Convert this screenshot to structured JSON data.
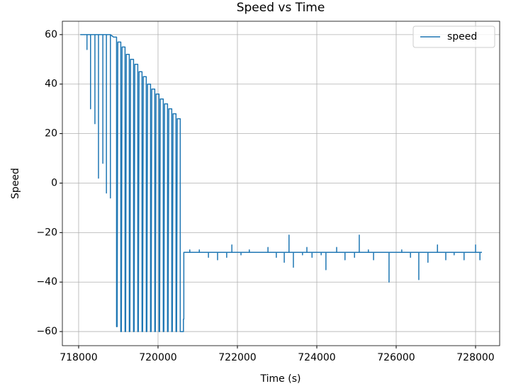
{
  "chart_data": {
    "type": "line",
    "title": "Speed vs Time",
    "xlabel": "Time (s)",
    "ylabel": "Speed",
    "x": [
      718040,
      718210,
      718210,
      718210,
      718300,
      718300,
      718300,
      718410,
      718410,
      718410,
      718500,
      718500,
      718500,
      718610,
      718610,
      718610,
      718700,
      718700,
      718700,
      718800,
      718800,
      718800,
      718880,
      718955,
      718955,
      718970,
      718987,
      719062,
      719062,
      719077,
      719094,
      719169,
      719169,
      719184,
      719201,
      719276,
      719276,
      719291,
      719308,
      719383,
      719383,
      719398,
      719415,
      719490,
      719490,
      719505,
      719522,
      719597,
      719597,
      719612,
      719629,
      719704,
      719704,
      719719,
      719736,
      719811,
      719811,
      719826,
      719843,
      719918,
      719918,
      719933,
      719950,
      720025,
      720025,
      720040,
      720057,
      720132,
      720132,
      720147,
      720164,
      720239,
      720239,
      720254,
      720271,
      720346,
      720346,
      720361,
      720378,
      720453,
      720453,
      720468,
      720485,
      720560,
      720560,
      720640,
      720640,
      720650,
      720650,
      720800,
      720800,
      720800,
      721040,
      721040,
      721040,
      721270,
      721270,
      721270,
      721500,
      721500,
      721500,
      721730,
      721730,
      721730,
      721860,
      721860,
      721860,
      722090,
      722090,
      722090,
      722300,
      722300,
      722300,
      722770,
      722770,
      722770,
      722980,
      722980,
      722980,
      723180,
      723180,
      723180,
      723300,
      723300,
      723300,
      723410,
      723410,
      723410,
      723640,
      723640,
      723640,
      723750,
      723750,
      723750,
      723880,
      723880,
      723880,
      724110,
      724110,
      724110,
      724230,
      724230,
      724230,
      724500,
      724500,
      724500,
      724710,
      724710,
      724710,
      724950,
      724950,
      724950,
      725070,
      725070,
      725070,
      725300,
      725300,
      725300,
      725430,
      725430,
      725430,
      725820,
      725820,
      725820,
      726140,
      726140,
      726140,
      726360,
      726360,
      726360,
      726570,
      726570,
      726570,
      726700,
      726700,
      726700,
      726800,
      726800,
      726800,
      727040,
      727040,
      727040,
      727250,
      727250,
      727250,
      727460,
      727460,
      727460,
      727710,
      727710,
      727710,
      728000,
      728000,
      728000,
      728110,
      728110,
      728110,
      728160
    ],
    "series": [
      {
        "name": "speed",
        "color": "#1f77b4",
        "values": [
          60,
          60,
          54,
          60,
          60,
          30,
          60,
          60,
          24,
          60,
          60,
          2,
          60,
          60,
          8,
          60,
          60,
          -4,
          60,
          60,
          -6,
          60,
          59,
          59,
          -58,
          -58,
          57,
          57,
          -60,
          -60,
          55,
          55,
          -60,
          -60,
          52,
          52,
          -60,
          -60,
          50,
          50,
          -60,
          -60,
          48,
          48,
          -60,
          -60,
          45,
          45,
          -60,
          -60,
          43,
          43,
          -60,
          -60,
          40,
          40,
          -60,
          -60,
          38,
          38,
          -60,
          -60,
          36,
          36,
          -60,
          -60,
          34,
          34,
          -60,
          -60,
          32,
          32,
          -60,
          -60,
          30,
          30,
          -60,
          -60,
          28,
          28,
          -60,
          -60,
          26,
          26,
          -60,
          -60,
          -55,
          -55,
          -28,
          -28,
          -27,
          -28,
          -28,
          -27,
          -28,
          -28,
          -30,
          -28,
          -28,
          -31,
          -28,
          -28,
          -30,
          -28,
          -28,
          -25,
          -28,
          -28,
          -29,
          -28,
          -28,
          -27,
          -28,
          -28,
          -26,
          -28,
          -28,
          -30,
          -28,
          -28,
          -32,
          -28,
          -28,
          -21,
          -28,
          -28,
          -34,
          -28,
          -28,
          -29,
          -28,
          -28,
          -26,
          -28,
          -28,
          -30,
          -28,
          -28,
          -29,
          -28,
          -28,
          -35,
          -28,
          -28,
          -26,
          -28,
          -28,
          -31,
          -28,
          -28,
          -30,
          -28,
          -28,
          -21,
          -28,
          -28,
          -27,
          -28,
          -28,
          -31,
          -28,
          -28,
          -40,
          -28,
          -28,
          -27,
          -28,
          -28,
          -30,
          -28,
          -28,
          -39,
          -28,
          -28,
          -28,
          -28,
          -28,
          -32,
          -28,
          -28,
          -25,
          -28,
          -28,
          -31,
          -28,
          -28,
          -29,
          -28,
          -28,
          -31,
          -28,
          -28,
          -25,
          -28,
          -28,
          -31,
          -28,
          -28
        ]
      }
    ],
    "xlim": [
      717590,
      728607
    ],
    "ylim": [
      -65.7,
      65.4
    ],
    "xticks": [
      718000,
      720000,
      722000,
      724000,
      726000,
      728000
    ],
    "yticks": [
      {
        "value": -60,
        "label": "−60"
      },
      {
        "value": -40,
        "label": "−40"
      },
      {
        "value": -20,
        "label": "−20"
      },
      0,
      20,
      40,
      60
    ],
    "grid": true,
    "legend": "upper right"
  }
}
